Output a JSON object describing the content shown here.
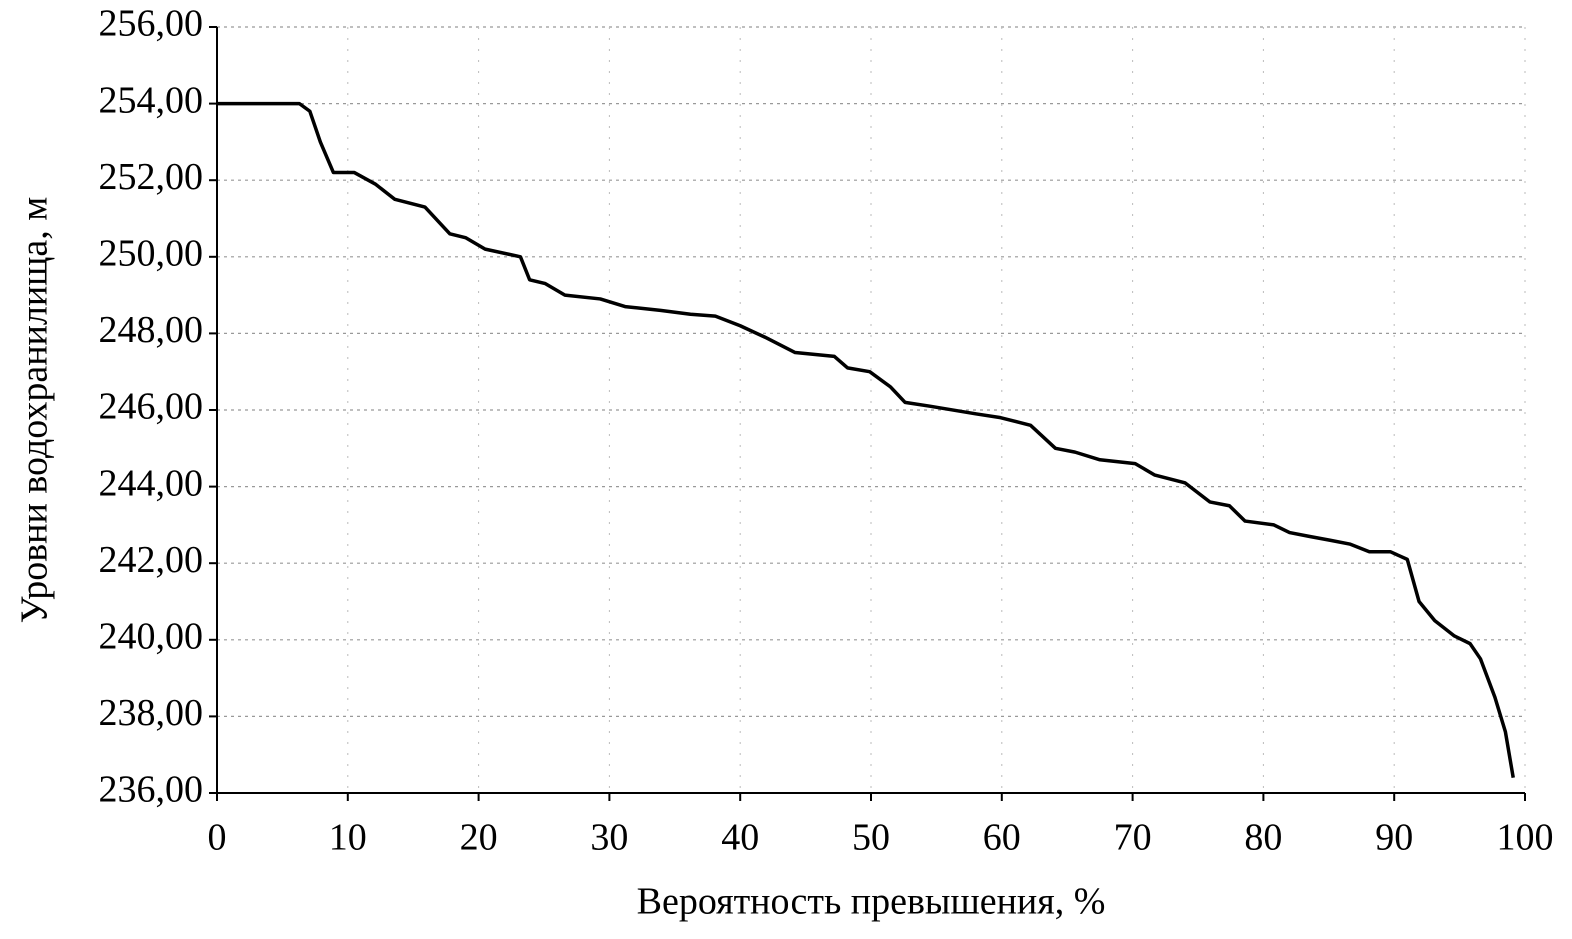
{
  "chart_data": {
    "type": "line",
    "x_label": "Вероятность превышения, %",
    "y_label": "Уровни водохранилища, м",
    "x": [
      0,
      6.3,
      7.1,
      7.9,
      8.9,
      10.5,
      12.1,
      13.6,
      15.9,
      17.8,
      19,
      20.5,
      23.2,
      23.9,
      25.1,
      26.6,
      29.3,
      31.2,
      33.9,
      36.2,
      38.1,
      40,
      41.9,
      44.2,
      47.2,
      48.2,
      49.9,
      51.5,
      52.6,
      54.5,
      58,
      59.9,
      62.2,
      64.1,
      65.6,
      67.5,
      70.2,
      71.7,
      74,
      75.9,
      77.4,
      78.6,
      80.8,
      82,
      83.5,
      85.1,
      86.6,
      88.1,
      89.7,
      91,
      91.9,
      93.1,
      94.6,
      95.8,
      96.6,
      97.7,
      98.5,
      99.1
    ],
    "series": [
      {
        "color": "#000000",
        "values": [
          254,
          254,
          253.8,
          253,
          252.2,
          252.2,
          251.9,
          251.5,
          251.3,
          250.6,
          250.5,
          250.2,
          250.0,
          249.4,
          249.3,
          249.0,
          248.9,
          248.7,
          248.6,
          248.5,
          248.45,
          248.2,
          247.9,
          247.5,
          247.4,
          247.1,
          247.0,
          246.6,
          246.2,
          246.1,
          245.9,
          245.8,
          245.6,
          245.0,
          244.9,
          244.7,
          244.6,
          244.3,
          244.1,
          243.6,
          243.5,
          243.1,
          243.0,
          242.8,
          242.7,
          242.6,
          242.5,
          242.3,
          242.3,
          242.1,
          241.0,
          240.5,
          240.1,
          239.9,
          239.5,
          238.5,
          237.6,
          236.4
        ]
      }
    ],
    "xlim": [
      0,
      100
    ],
    "xticks": [
      0,
      10,
      20,
      30,
      40,
      50,
      60,
      70,
      80,
      90,
      100
    ],
    "ylim": [
      236,
      256
    ],
    "yticks": [
      {
        "value": 236,
        "label": "236,00"
      },
      {
        "value": 238,
        "label": "238,00"
      },
      {
        "value": 240,
        "label": "240,00"
      },
      {
        "value": 242,
        "label": "242,00"
      },
      {
        "value": 244,
        "label": "244,00"
      },
      {
        "value": 246,
        "label": "246,00"
      },
      {
        "value": 248,
        "label": "248,00"
      },
      {
        "value": 250,
        "label": "250,00"
      },
      {
        "value": 252,
        "label": "252,00"
      },
      {
        "value": 254,
        "label": "254,00"
      },
      {
        "value": 256,
        "label": "256,00"
      }
    ],
    "grid": true
  }
}
